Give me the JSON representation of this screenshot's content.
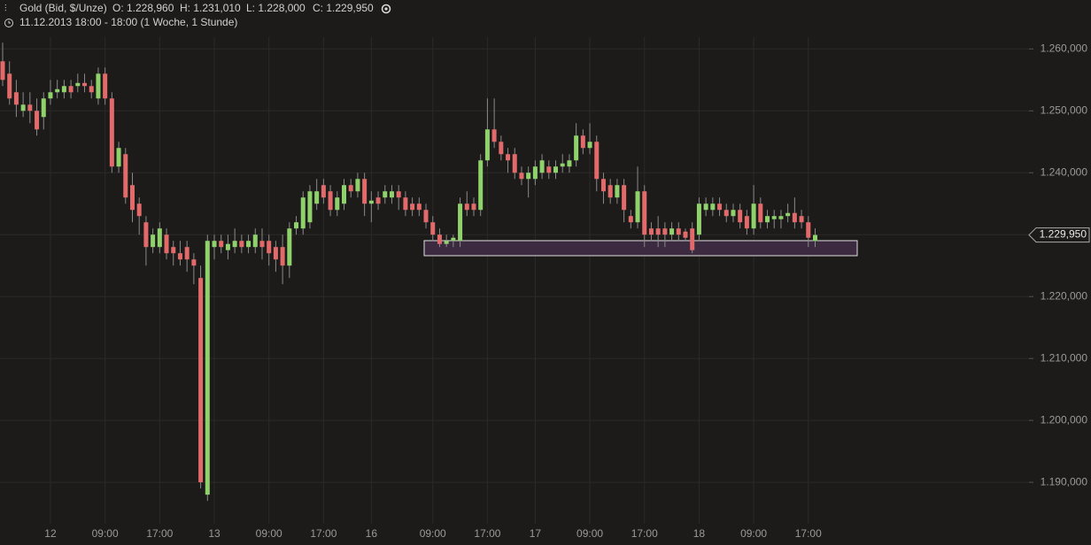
{
  "chart_data": {
    "type": "candlestick",
    "title": "Gold (Bid, $/Unze)",
    "summary": [
      "O: 1.228,960",
      "H: 1.231,010",
      "L: 1.228,000",
      "C: 1.229,950"
    ],
    "subtitle": "11.12.2013 18:00 - 18:00 (1 Woche, 1 Stunde)",
    "up_color": "#8fd16b",
    "down_color": "#e26a6a",
    "wick_color": "#8a8a8a",
    "categories": [
      null,
      null,
      null,
      null,
      null,
      null,
      null,
      "12",
      null,
      null,
      null,
      null,
      null,
      null,
      null,
      "09:00",
      null,
      null,
      null,
      null,
      null,
      null,
      null,
      "17:00",
      null,
      null,
      null,
      null,
      null,
      null,
      null,
      "13",
      null,
      null,
      null,
      null,
      null,
      null,
      null,
      "09:00",
      null,
      null,
      null,
      null,
      null,
      null,
      null,
      "17:00",
      null,
      null,
      null,
      null,
      null,
      null,
      "16",
      null,
      null,
      null,
      null,
      null,
      null,
      null,
      null,
      "09:00",
      null,
      null,
      null,
      null,
      null,
      null,
      null,
      "17:00",
      null,
      null,
      null,
      null,
      null,
      null,
      "17",
      null,
      null,
      null,
      null,
      null,
      null,
      null,
      "09:00",
      null,
      null,
      null,
      null,
      null,
      null,
      null,
      "17:00",
      null,
      null,
      null,
      null,
      null,
      null,
      null,
      "18",
      null,
      null,
      null,
      null,
      null,
      null,
      null,
      "09:00",
      null,
      null,
      null,
      null,
      null,
      null,
      null,
      "17:00",
      null
    ],
    "open": [
      1258,
      1256,
      1253,
      1250,
      1251,
      1250,
      1249,
      1252,
      1253,
      1253,
      1254,
      1254,
      1254.5,
      1254,
      1252,
      1256,
      1252,
      1241,
      1243,
      1238,
      1235,
      1232,
      1228,
      1228,
      1230,
      1228,
      1227,
      1228,
      1226,
      1223,
      1188,
      1228,
      1229,
      1227.5,
      1228,
      1229,
      1228,
      1228,
      1229,
      1229,
      1228,
      1228,
      1225,
      1231,
      1231,
      1232,
      1235,
      1238,
      1237,
      1234,
      1235,
      1238,
      1237,
      1239,
      1235,
      1236,
      1236,
      1236,
      1237,
      1236,
      1235,
      1235,
      1234,
      1232,
      1230,
      1228.5,
      1229,
      1229,
      1235,
      1235,
      1234,
      1242,
      1247,
      1245,
      1243,
      1243,
      1240,
      1239,
      1239,
      1240,
      1241,
      1240,
      1241,
      1241,
      1242,
      1246,
      1244,
      1245,
      1239,
      1238,
      1236,
      1238,
      1233,
      1232,
      1237,
      1231,
      1231,
      1231,
      1230,
      1231,
      1230.5,
      1231,
      1230,
      1234,
      1234,
      1235,
      1234,
      1233,
      1234,
      1233,
      1231,
      1235,
      1232,
      1232.5,
      1232.5,
      1233,
      1233.5,
      1233,
      1232,
      1228.96
    ],
    "high": [
      1261,
      1258,
      1255,
      1253,
      1253,
      1252,
      1253,
      1255,
      1255,
      1255,
      1255,
      1256,
      1256,
      1255,
      1257,
      1257,
      1253,
      1245,
      1244,
      1240,
      1236,
      1233,
      1231,
      1232,
      1231,
      1229,
      1229,
      1229,
      1227,
      1225,
      1230,
      1230,
      1230,
      1230,
      1231,
      1230,
      1230,
      1231,
      1231,
      1230,
      1229,
      1230,
      1232,
      1233,
      1237,
      1238,
      1239,
      1239,
      1238,
      1237,
      1239,
      1239,
      1240,
      1240,
      1237,
      1237,
      1238,
      1238,
      1238,
      1237,
      1236,
      1236,
      1235,
      1233,
      1231,
      1230,
      1230,
      1236,
      1237,
      1236,
      1243,
      1252,
      1252,
      1246,
      1244,
      1244,
      1241,
      1241,
      1242,
      1243,
      1242,
      1242,
      1243,
      1243,
      1248,
      1247,
      1248,
      1246,
      1240,
      1239,
      1239,
      1239,
      1234,
      1241,
      1238,
      1232,
      1233,
      1232,
      1232,
      1232,
      1231,
      1232,
      1236,
      1236,
      1236,
      1236,
      1235,
      1235,
      1235,
      1234,
      1238,
      1236,
      1234,
      1234,
      1234,
      1235,
      1236,
      1234,
      1233,
      1231.01
    ],
    "low": [
      1254,
      1251,
      1249,
      1249,
      1248,
      1246,
      1247,
      1251,
      1252,
      1252,
      1252,
      1253,
      1253,
      1252,
      1251,
      1251,
      1240,
      1240,
      1235,
      1232,
      1230,
      1225,
      1227,
      1227,
      1226,
      1225,
      1225,
      1224,
      1222,
      1189,
      1187,
      1226,
      1227,
      1226,
      1227,
      1227,
      1227,
      1227,
      1226,
      1225,
      1224,
      1222,
      1223,
      1230,
      1230,
      1231,
      1234,
      1235,
      1233,
      1233,
      1234,
      1236,
      1236,
      1233,
      1232,
      1234,
      1235,
      1235,
      1234,
      1233,
      1233,
      1233,
      1231,
      1229,
      1228,
      1228,
      1228,
      1228,
      1233,
      1233,
      1233,
      1241,
      1244,
      1242,
      1240,
      1239,
      1238,
      1236,
      1238,
      1239,
      1239,
      1239,
      1240,
      1240,
      1241,
      1243,
      1243,
      1237,
      1235,
      1235,
      1235,
      1232,
      1231,
      1231,
      1228,
      1229,
      1228,
      1228,
      1229,
      1229,
      1229,
      1227,
      1229,
      1233,
      1233,
      1233,
      1232,
      1232,
      1231,
      1230,
      1230,
      1231,
      1231,
      1231,
      1231,
      1232,
      1231,
      1231,
      1228,
      1228
    ],
    "close": [
      1255,
      1252,
      1251,
      1251,
      1250,
      1247,
      1252,
      1253,
      1253.5,
      1254,
      1253,
      1254.5,
      1254,
      1253,
      1256,
      1252,
      1241,
      1244,
      1236,
      1234,
      1233,
      1228,
      1230,
      1231,
      1227,
      1227,
      1226,
      1226,
      1225,
      1190,
      1229,
      1229,
      1228,
      1228.5,
      1229,
      1228,
      1229,
      1230,
      1228,
      1227,
      1226,
      1225,
      1231,
      1232,
      1236,
      1237,
      1237,
      1236,
      1234,
      1236,
      1238,
      1237,
      1239,
      1235,
      1235.5,
      1235,
      1237,
      1237,
      1236,
      1234,
      1234,
      1234,
      1232,
      1230,
      1228.5,
      1229,
      1229.5,
      1235,
      1234,
      1234,
      1242,
      1247,
      1245,
      1243,
      1242,
      1240,
      1239,
      1240,
      1241,
      1242,
      1240,
      1241,
      1241.5,
      1242,
      1246,
      1244,
      1245,
      1239,
      1237,
      1236,
      1238,
      1234,
      1232,
      1237,
      1230,
      1230,
      1230,
      1230,
      1231,
      1230,
      1229.5,
      1227.5,
      1235,
      1235,
      1235,
      1234,
      1233,
      1234,
      1232,
      1231,
      1235,
      1232,
      1233,
      1233,
      1233,
      1233.5,
      1232,
      1232,
      1229.5,
      1229.95
    ],
    "last_price": {
      "value": 1229.95,
      "label": "1.229,950"
    },
    "ylim": [
      1183.3,
      1261.9
    ],
    "yticks": [
      {
        "value": 1190,
        "label": "1.190,000"
      },
      {
        "value": 1200,
        "label": "1.200,000"
      },
      {
        "value": 1210,
        "label": "1.210,000"
      },
      {
        "value": 1220,
        "label": "1.220,000"
      },
      {
        "value": 1230,
        "label": "1.230,000"
      },
      {
        "value": 1240,
        "label": "1.240,000"
      },
      {
        "value": 1250,
        "label": "1.250,000"
      },
      {
        "value": 1260,
        "label": "1.260,000"
      }
    ],
    "grid": true
  }
}
